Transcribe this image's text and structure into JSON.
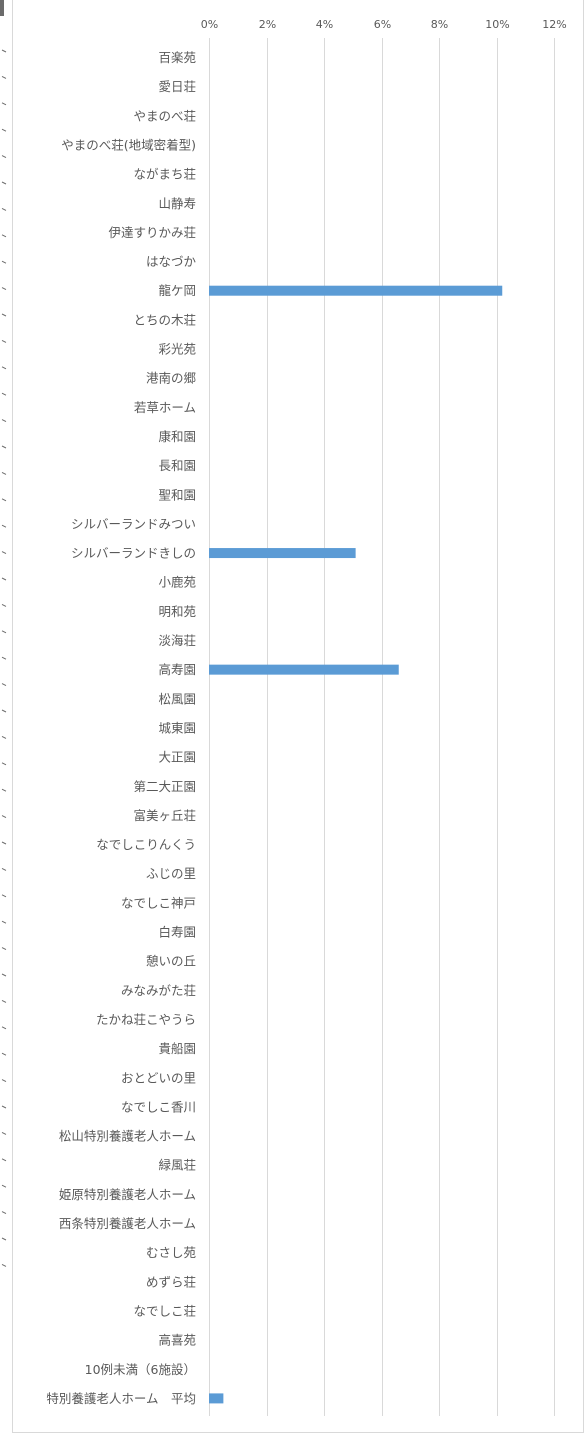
{
  "chart_data": {
    "type": "bar",
    "orientation": "horizontal",
    "title": "",
    "xlabel": "",
    "ylabel": "",
    "xlim": [
      0,
      12
    ],
    "x_ticks": [
      "0%",
      "2%",
      "4%",
      "6%",
      "8%",
      "10%",
      "12%"
    ],
    "grid": true,
    "legend": "none",
    "bar_color": "#5b9bd5",
    "categories": [
      "百楽苑",
      "愛日荘",
      "やまのべ荘",
      "やまのべ荘(地域密着型)",
      "ながまち荘",
      "山静寿",
      "伊達すりかみ荘",
      "はなづか",
      "龍ケ岡",
      "とちの木荘",
      "彩光苑",
      "港南の郷",
      "若草ホーム",
      "康和園",
      "長和園",
      "聖和園",
      "シルバーランドみつい",
      "シルバーランドきしの",
      "小鹿苑",
      "明和苑",
      "淡海荘",
      "高寿園",
      "松風園",
      "城東園",
      "大正園",
      "第二大正園",
      "富美ヶ丘荘",
      "なでしこりんくう",
      "ふじの里",
      "なでしこ神戸",
      "白寿園",
      "憩いの丘",
      "みなみがた荘",
      "たかね荘こやうら",
      "貴船園",
      "おとどいの里",
      "なでしこ香川",
      "松山特別養護老人ホーム",
      "緑風荘",
      "姫原特別養護老人ホーム",
      "西条特別養護老人ホーム",
      "むさし苑",
      "めずら荘",
      "なでしこ荘",
      "高喜苑",
      "10例未満（6施設）",
      "特別養護老人ホーム　平均"
    ],
    "values": [
      0,
      0,
      0,
      0,
      0,
      0,
      0,
      0,
      10.2,
      0,
      0,
      0,
      0,
      0,
      0,
      0,
      0,
      5.1,
      0,
      0,
      0,
      6.6,
      0,
      0,
      0,
      0,
      0,
      0,
      0,
      0,
      0,
      0,
      0,
      0,
      0,
      0,
      0,
      0,
      0,
      0,
      0,
      0,
      0,
      0,
      0,
      0,
      0.5
    ]
  }
}
